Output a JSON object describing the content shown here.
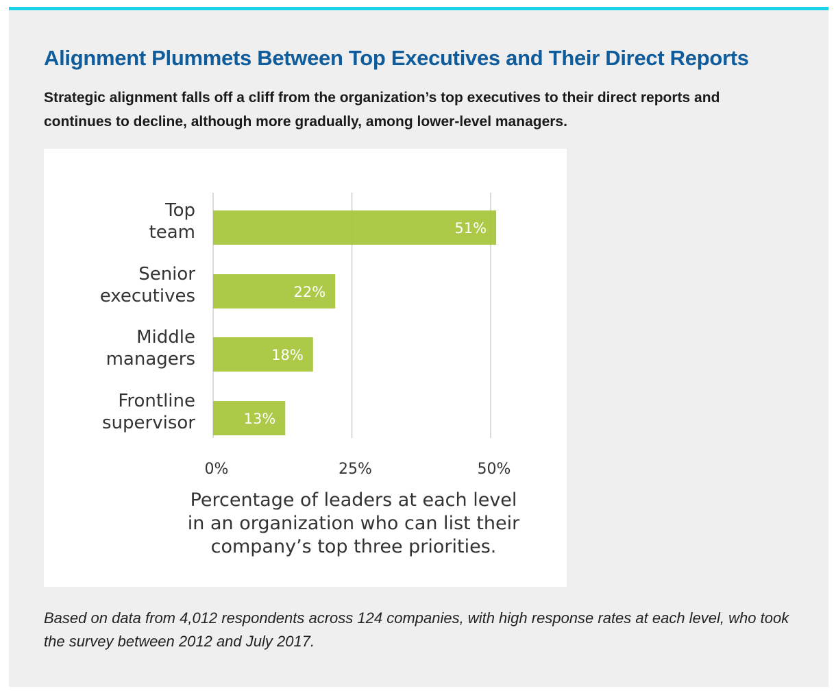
{
  "header": {
    "title": "Alignment Plummets Between Top Executives and Their Direct Reports",
    "subtitle": "Strategic alignment falls off a cliff from the organization’s top executives to their direct reports and continues to decline, although more gradually, among lower-level managers."
  },
  "footnote": "Based on data from 4,012 respondents across 124 companies, with high response rates at each level, who took the survey between 2012 and July 2017.",
  "colors": {
    "accent_bar": "#1ad3ea",
    "title": "#0f5c9c",
    "bar": "#a5c438",
    "grid": "#cfcfcf"
  },
  "chart_data": {
    "type": "bar",
    "orientation": "horizontal",
    "categories": [
      [
        "Top",
        "team"
      ],
      [
        "Senior",
        "executives"
      ],
      [
        "Middle",
        "managers"
      ],
      [
        "Frontline",
        "supervisor"
      ]
    ],
    "values": [
      51,
      22,
      18,
      13
    ],
    "value_labels": [
      "51%",
      "22%",
      "18%",
      "13%"
    ],
    "xlim": [
      0,
      50
    ],
    "xticks": [
      0,
      25,
      50
    ],
    "xtick_labels": [
      "0%",
      "25%",
      "50%"
    ],
    "xlabel": [
      "Percentage of leaders at each level",
      "in an organization who can list their",
      "company’s top three priorities."
    ],
    "grid": true,
    "unit": "%"
  }
}
